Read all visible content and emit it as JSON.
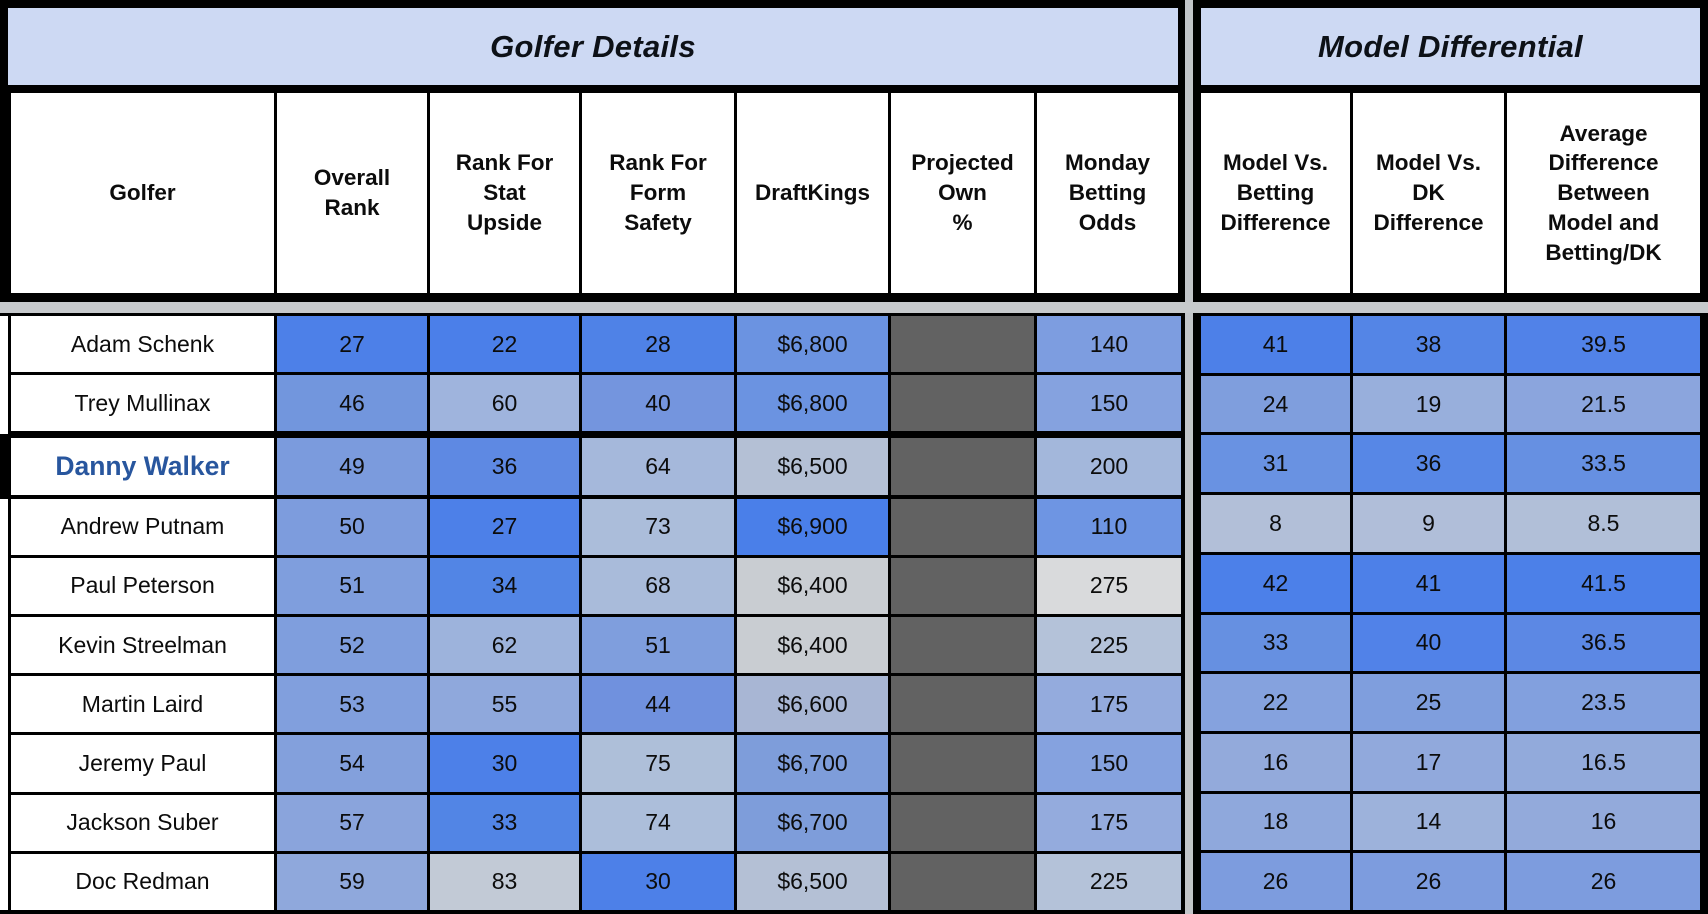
{
  "left_section": {
    "title": "Golfer Details",
    "columns": {
      "golfer": "Golfer",
      "overall_rank": "Overall\nRank",
      "stat_upside": "Rank For\nStat\nUpside",
      "form_safety": "Rank For\nForm\nSafety",
      "draftkings": "DraftKings",
      "projected_own": "Projected\nOwn\n%",
      "betting_odds": "Monday\nBetting\nOdds"
    }
  },
  "right_section": {
    "title": "Model Differential",
    "columns": {
      "model_vs_betting": "Model Vs.\nBetting\nDifference",
      "model_vs_dk": "Model Vs.\nDK\nDifference",
      "avg_model_betting_dk": "Average\nDifference\nBetween\nModel and\nBetting/DK"
    }
  },
  "palette": {
    "banner_bg": "#cdd9f3",
    "grid_black": "#000000",
    "pane_divider_gray": "#c6c9cc",
    "projected_own_gray": "#626262",
    "selected_name_color": "#28569e",
    "cell_text": "#0c0c0c",
    "scale_strong_blue": "#4d80e8",
    "scale_light_gray": "#d9dadc"
  },
  "rows": [
    {
      "golfer": "Adam Schenk",
      "selected": false,
      "overall": {
        "v": "27",
        "bg": "#4d80e8"
      },
      "stat_upside": {
        "v": "22",
        "bg": "#4b7fe9"
      },
      "form_safety": {
        "v": "28",
        "bg": "#4f82e7"
      },
      "draftkings": {
        "v": "$6,800",
        "bg": "#6b93e1"
      },
      "projected_own": {
        "v": "",
        "bg": "#626262"
      },
      "betting_odds": {
        "v": "140",
        "bg": "#7d9de0"
      },
      "model_vs_betting": {
        "v": "41",
        "bg": "#4d80e8"
      },
      "model_vs_dk": {
        "v": "38",
        "bg": "#5485e6"
      },
      "avg_model_betting_dk": {
        "v": "39.5",
        "bg": "#5182e8"
      }
    },
    {
      "golfer": "Trey Mullinax",
      "selected": false,
      "overall": {
        "v": "46",
        "bg": "#7296dd"
      },
      "stat_upside": {
        "v": "60",
        "bg": "#9fb4dd"
      },
      "form_safety": {
        "v": "40",
        "bg": "#7495de"
      },
      "draftkings": {
        "v": "$6,800",
        "bg": "#6b93e1"
      },
      "projected_own": {
        "v": "",
        "bg": "#626262"
      },
      "betting_odds": {
        "v": "150",
        "bg": "#85a2df"
      },
      "model_vs_betting": {
        "v": "24",
        "bg": "#7f9edd"
      },
      "model_vs_dk": {
        "v": "19",
        "bg": "#98afdc"
      },
      "avg_model_betting_dk": {
        "v": "21.5",
        "bg": "#8ba5dd"
      }
    },
    {
      "golfer": "Danny Walker",
      "selected": true,
      "overall": {
        "v": "49",
        "bg": "#7b9bdd"
      },
      "stat_upside": {
        "v": "36",
        "bg": "#5e89e3"
      },
      "form_safety": {
        "v": "64",
        "bg": "#a5b8db"
      },
      "draftkings": {
        "v": "$6,500",
        "bg": "#b4c0d5"
      },
      "projected_own": {
        "v": "",
        "bg": "#626262"
      },
      "betting_odds": {
        "v": "200",
        "bg": "#a3b7db"
      },
      "model_vs_betting": {
        "v": "31",
        "bg": "#6992e2"
      },
      "model_vs_dk": {
        "v": "36",
        "bg": "#5787e6"
      },
      "avg_model_betting_dk": {
        "v": "33.5",
        "bg": "#6690e2"
      }
    },
    {
      "golfer": "Andrew Putnam",
      "selected": false,
      "overall": {
        "v": "50",
        "bg": "#7d9cdd"
      },
      "stat_upside": {
        "v": "27",
        "bg": "#4d80e8"
      },
      "form_safety": {
        "v": "73",
        "bg": "#abbdda"
      },
      "draftkings": {
        "v": "$6,900",
        "bg": "#4a7fe9"
      },
      "projected_own": {
        "v": "",
        "bg": "#626262"
      },
      "betting_odds": {
        "v": "110",
        "bg": "#6e95e3"
      },
      "model_vs_betting": {
        "v": "8",
        "bg": "#b2bfd8"
      },
      "model_vs_dk": {
        "v": "9",
        "bg": "#b0bed9"
      },
      "avg_model_betting_dk": {
        "v": "8.5",
        "bg": "#b1bfd8"
      }
    },
    {
      "golfer": "Paul Peterson",
      "selected": false,
      "overall": {
        "v": "51",
        "bg": "#7f9edd"
      },
      "stat_upside": {
        "v": "34",
        "bg": "#5285e5"
      },
      "form_safety": {
        "v": "68",
        "bg": "#a9bbda"
      },
      "draftkings": {
        "v": "$6,400",
        "bg": "#c9cdd2"
      },
      "projected_own": {
        "v": "",
        "bg": "#626262"
      },
      "betting_odds": {
        "v": "275",
        "bg": "#d9dadc"
      },
      "model_vs_betting": {
        "v": "42",
        "bg": "#4c80e9"
      },
      "model_vs_dk": {
        "v": "41",
        "bg": "#4d80e8"
      },
      "avg_model_betting_dk": {
        "v": "41.5",
        "bg": "#4c80e8"
      }
    },
    {
      "golfer": "Kevin Streelman",
      "selected": false,
      "overall": {
        "v": "52",
        "bg": "#7f9edd"
      },
      "stat_upside": {
        "v": "62",
        "bg": "#9db3dc"
      },
      "form_safety": {
        "v": "51",
        "bg": "#7f9edd"
      },
      "draftkings": {
        "v": "$6,400",
        "bg": "#c9cdd2"
      },
      "projected_own": {
        "v": "",
        "bg": "#626262"
      },
      "betting_odds": {
        "v": "225",
        "bg": "#b4c2d9"
      },
      "model_vs_betting": {
        "v": "33",
        "bg": "#6690e1"
      },
      "model_vs_dk": {
        "v": "40",
        "bg": "#5182e8"
      },
      "avg_model_betting_dk": {
        "v": "36.5",
        "bg": "#5c88e4"
      }
    },
    {
      "golfer": "Martin Laird",
      "selected": false,
      "overall": {
        "v": "53",
        "bg": "#819fdd"
      },
      "stat_upside": {
        "v": "55",
        "bg": "#8fa8dc"
      },
      "form_safety": {
        "v": "44",
        "bg": "#7091de"
      },
      "draftkings": {
        "v": "$6,600",
        "bg": "#a8b6d4"
      },
      "projected_own": {
        "v": "",
        "bg": "#626262"
      },
      "betting_odds": {
        "v": "175",
        "bg": "#94abdd"
      },
      "model_vs_betting": {
        "v": "22",
        "bg": "#85a2de"
      },
      "model_vs_dk": {
        "v": "25",
        "bg": "#7f9edd"
      },
      "avg_model_betting_dk": {
        "v": "23.5",
        "bg": "#82a0de"
      }
    },
    {
      "golfer": "Jeremy Paul",
      "selected": false,
      "overall": {
        "v": "54",
        "bg": "#83a0dc"
      },
      "stat_upside": {
        "v": "30",
        "bg": "#4d80e8"
      },
      "form_safety": {
        "v": "75",
        "bg": "#aebfd9"
      },
      "draftkings": {
        "v": "$6,700",
        "bg": "#7e9dda"
      },
      "projected_own": {
        "v": "",
        "bg": "#626262"
      },
      "betting_odds": {
        "v": "150",
        "bg": "#85a2df"
      },
      "model_vs_betting": {
        "v": "16",
        "bg": "#93aadb"
      },
      "model_vs_dk": {
        "v": "17",
        "bg": "#91a9dc"
      },
      "avg_model_betting_dk": {
        "v": "16.5",
        "bg": "#92aadb"
      }
    },
    {
      "golfer": "Jackson Suber",
      "selected": false,
      "overall": {
        "v": "57",
        "bg": "#8aa4dc"
      },
      "stat_upside": {
        "v": "33",
        "bg": "#5285e5"
      },
      "form_safety": {
        "v": "74",
        "bg": "#acbeda"
      },
      "draftkings": {
        "v": "$6,700",
        "bg": "#7e9dda"
      },
      "projected_own": {
        "v": "",
        "bg": "#626262"
      },
      "betting_odds": {
        "v": "175",
        "bg": "#94abdd"
      },
      "model_vs_betting": {
        "v": "18",
        "bg": "#8fa8dc"
      },
      "model_vs_dk": {
        "v": "14",
        "bg": "#9db2db"
      },
      "avg_model_betting_dk": {
        "v": "16",
        "bg": "#93aadb"
      }
    },
    {
      "golfer": "Doc Redman",
      "selected": false,
      "overall": {
        "v": "59",
        "bg": "#8fa8dc"
      },
      "stat_upside": {
        "v": "83",
        "bg": "#c2cad6"
      },
      "form_safety": {
        "v": "30",
        "bg": "#4d80e8"
      },
      "draftkings": {
        "v": "$6,500",
        "bg": "#b4c0d5"
      },
      "projected_own": {
        "v": "",
        "bg": "#626262"
      },
      "betting_odds": {
        "v": "225",
        "bg": "#b4c2d9"
      },
      "model_vs_betting": {
        "v": "26",
        "bg": "#7d9cde"
      },
      "model_vs_dk": {
        "v": "26",
        "bg": "#7d9cde"
      },
      "avg_model_betting_dk": {
        "v": "26",
        "bg": "#7d9cde"
      }
    }
  ]
}
